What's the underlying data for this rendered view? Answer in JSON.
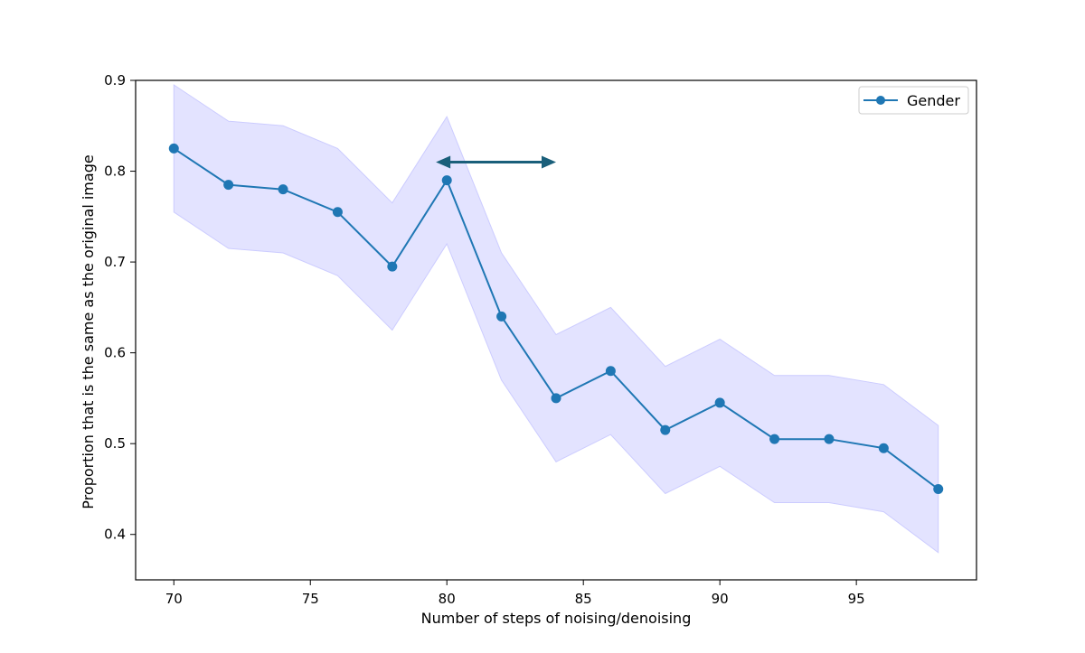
{
  "chart_data": {
    "type": "line",
    "xlabel": "Number of steps of noising/denoising",
    "ylabel": "Proportion that is the same as the original image",
    "xlim": [
      68.6,
      99.4
    ],
    "ylim": [
      0.35,
      0.9
    ],
    "xticks": [
      70,
      75,
      80,
      85,
      90,
      95
    ],
    "yticks": [
      0.4,
      0.5,
      0.6,
      0.7,
      0.8,
      0.9
    ],
    "xtick_labels": [
      "70",
      "75",
      "80",
      "85",
      "90",
      "95"
    ],
    "ytick_labels": [
      "0.4",
      "0.5",
      "0.6",
      "0.7",
      "0.8",
      "0.9"
    ],
    "grid": false,
    "legend_position": "top-right",
    "series": [
      {
        "name": "Gender",
        "color": "#1f77b4",
        "marker": "circle",
        "x": [
          70,
          72,
          74,
          76,
          78,
          80,
          82,
          84,
          86,
          88,
          90,
          92,
          94,
          96,
          98
        ],
        "y": [
          0.825,
          0.785,
          0.78,
          0.755,
          0.695,
          0.79,
          0.64,
          0.55,
          0.58,
          0.515,
          0.545,
          0.505,
          0.505,
          0.495,
          0.45
        ],
        "band_upper": [
          0.895,
          0.855,
          0.85,
          0.825,
          0.765,
          0.86,
          0.71,
          0.62,
          0.65,
          0.585,
          0.615,
          0.575,
          0.575,
          0.565,
          0.52
        ],
        "band_lower": [
          0.755,
          0.715,
          0.71,
          0.685,
          0.625,
          0.72,
          0.57,
          0.48,
          0.51,
          0.445,
          0.475,
          0.435,
          0.435,
          0.425,
          0.38
        ],
        "band_color": "#ccccff"
      }
    ],
    "annotations": [
      {
        "type": "double-arrow",
        "x_start": 79.6,
        "x_end": 84.0,
        "y": 0.81,
        "color": "#1a5f7a"
      }
    ]
  }
}
